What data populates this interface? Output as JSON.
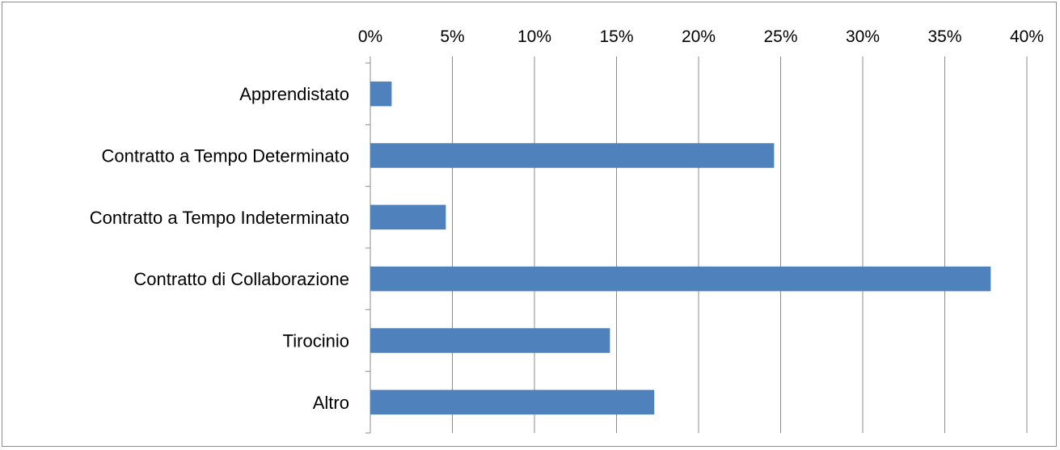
{
  "chart_data": {
    "type": "bar",
    "orientation": "horizontal",
    "title": "",
    "xlabel": "",
    "ylabel": "",
    "xlim": [
      0,
      40
    ],
    "x_ticks": [
      "0%",
      "5%",
      "10%",
      "15%",
      "20%",
      "25%",
      "30%",
      "35%",
      "40%"
    ],
    "x_axis_position": "top",
    "grid": true,
    "legend": "none",
    "categories": [
      "Apprendistato",
      "Contratto a Tempo Determinato",
      "Contratto a Tempo Indeterminato",
      "Contratto di Collaborazione",
      "Tirocinio",
      "Altro"
    ],
    "values": [
      1.3,
      24.6,
      4.6,
      37.8,
      14.6,
      17.3
    ],
    "unit": "%",
    "bar_color": "#4f81bd",
    "grid_color": "#8c8c8c"
  }
}
